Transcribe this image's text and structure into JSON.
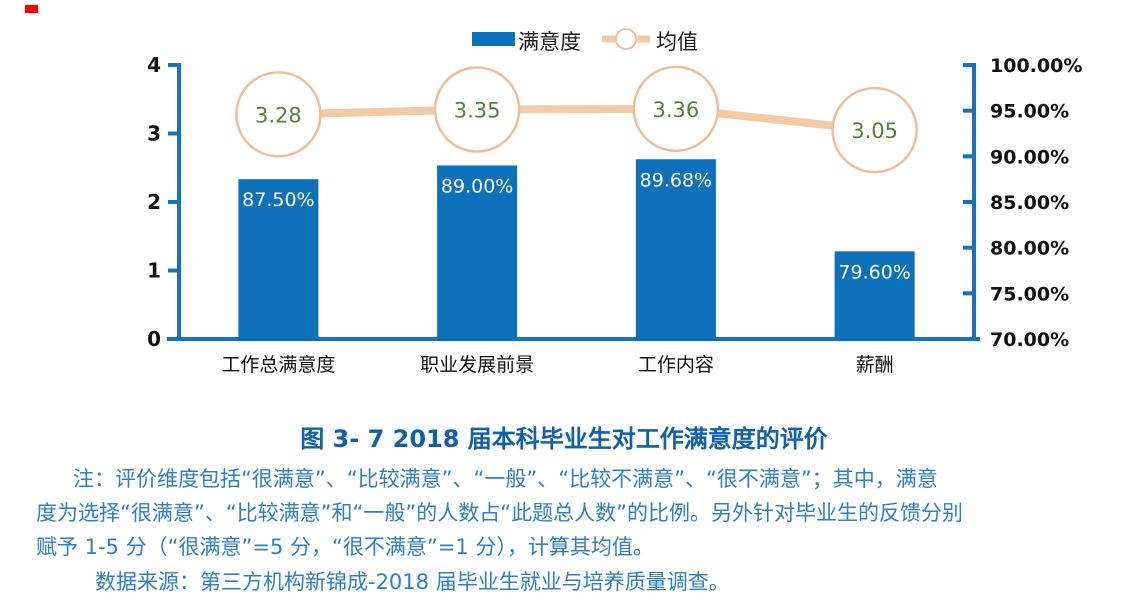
{
  "legend": {
    "bar_label": "满意度",
    "line_label": "均值"
  },
  "chart_data": {
    "type": "bar",
    "categories": [
      "工作总满意度",
      "职业发展前景",
      "工作内容",
      "薪酬"
    ],
    "series": [
      {
        "name": "满意度",
        "type": "bar",
        "axis": "right",
        "values": [
          87.5,
          89.0,
          89.68,
          79.6
        ],
        "labels": [
          "87.50%",
          "89.00%",
          "89.68%",
          "79.60%"
        ]
      },
      {
        "name": "均值",
        "type": "line",
        "axis": "left",
        "values": [
          3.28,
          3.35,
          3.36,
          3.05
        ],
        "labels": [
          "3.28",
          "3.35",
          "3.36",
          "3.05"
        ]
      }
    ],
    "left_axis": {
      "min": 0,
      "max": 4,
      "step": 1,
      "ticks": [
        "0",
        "1",
        "2",
        "3",
        "4"
      ]
    },
    "right_axis": {
      "min": 70,
      "max": 100,
      "step": 5,
      "ticks": [
        "100.00%",
        "95.00%",
        "90.00%",
        "85.00%",
        "80.00%",
        "75.00%",
        "70.00%"
      ]
    },
    "title": "图 3- 7　2018 届本科毕业生对工作满意度的评价",
    "grid": "off",
    "legend_position": "top-center"
  },
  "caption": "图 3- 7  2018 届本科毕业生对工作满意度的评价",
  "notes": {
    "line1": "注：评价维度包括“很满意”、“比较满意”、“一般”、“比较不满意”、“很不满意”；其中，满意",
    "line2": "度为选择“很满意”、“比较满意”和“一般”的人数占“此题总人数”的比例。另外针对毕业生的反馈分别",
    "line3": "赋予 1-5 分（“很满意”=5 分，“很不满意”=1 分），计算其均值。",
    "line4": "数据来源：第三方机构新锦成-2018 届毕业生就业与培养质量调查。"
  },
  "colors": {
    "bar": "#0C70BA",
    "axis": "#1672BC",
    "line": "#F4C9A6",
    "marker_stroke": "#EFBE9D",
    "mean_text": "#548235",
    "bar_label": "#FFFFFF",
    "tick_text": "#111111",
    "caption": "#0F61AC",
    "note": "#2E7FC6",
    "red_marker": "#FF0000"
  }
}
